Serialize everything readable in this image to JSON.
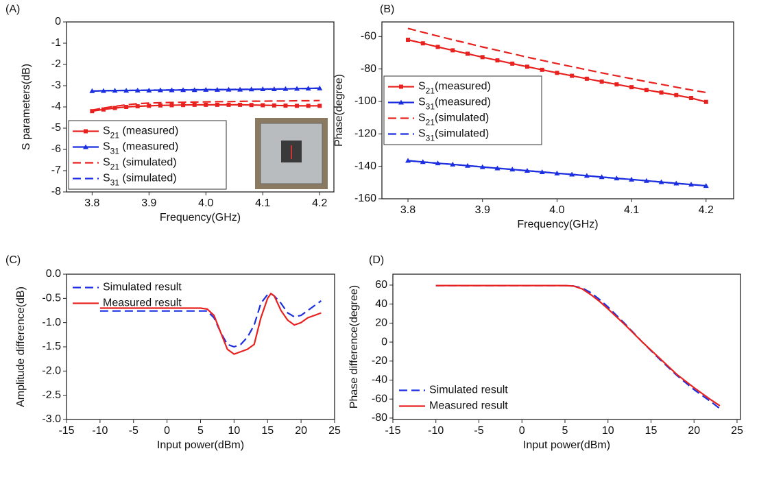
{
  "chart_data": [
    {
      "type": "line",
      "label": "(A)",
      "xlabel": "Frequency(GHz)",
      "ylabel": "S parameters(dB)",
      "x": [
        3.8,
        3.82,
        3.84,
        3.86,
        3.88,
        3.9,
        3.92,
        3.94,
        3.96,
        3.98,
        4.0,
        4.02,
        4.04,
        4.06,
        4.08,
        4.1,
        4.12,
        4.14,
        4.16,
        4.18,
        4.2
      ],
      "series": [
        {
          "name": "S21 (measured)",
          "color": "#e8201e",
          "marker": "square",
          "dashed": false,
          "values": [
            -4.2,
            -4.12,
            -4.05,
            -4.0,
            -3.97,
            -3.95,
            -3.93,
            -3.92,
            -3.91,
            -3.9,
            -3.9,
            -3.9,
            -3.9,
            -3.9,
            -3.91,
            -3.92,
            -3.93,
            -3.94,
            -3.95,
            -3.95,
            -3.95
          ]
        },
        {
          "name": "S31 (measured)",
          "color": "#1c2fe0",
          "marker": "triangle",
          "dashed": false,
          "values": [
            -3.25,
            -3.24,
            -3.23,
            -3.23,
            -3.22,
            -3.22,
            -3.21,
            -3.21,
            -3.2,
            -3.2,
            -3.19,
            -3.19,
            -3.18,
            -3.18,
            -3.17,
            -3.16,
            -3.16,
            -3.15,
            -3.14,
            -3.13,
            -3.12
          ]
        },
        {
          "name": "S21 (simulated)",
          "color": "#e8201e",
          "dashed": true,
          "values": [
            -4.15,
            -4.05,
            -3.97,
            -3.9,
            -3.85,
            -3.82,
            -3.8,
            -3.79,
            -3.78,
            -3.77,
            -3.76,
            -3.75,
            -3.75,
            -3.74,
            -3.73,
            -3.73,
            -3.72,
            -3.72,
            -3.71,
            -3.71,
            -3.7
          ]
        },
        {
          "name": "S31 (simulated)",
          "color": "#1c2fe0",
          "dashed": true,
          "values": [
            -3.25,
            -3.24,
            -3.23,
            -3.22,
            -3.22,
            -3.21,
            -3.21,
            -3.2,
            -3.2,
            -3.19,
            -3.19,
            -3.18,
            -3.18,
            -3.17,
            -3.17,
            -3.16,
            -3.15,
            -3.15,
            -3.14,
            -3.13,
            -3.12
          ]
        }
      ],
      "xlim": [
        3.755,
        4.225
      ],
      "ylim": [
        -8,
        0
      ],
      "xticks": [
        3.8,
        3.9,
        {
          "value": 4,
          "label": "4.0"
        },
        4.1,
        4.2
      ],
      "yticks": [
        0,
        -1,
        -2,
        -3,
        -4,
        -5,
        -6,
        -7,
        -8
      ],
      "legend": "lower left",
      "legend_frame": true
    },
    {
      "type": "line",
      "label": "(B)",
      "xlabel": "Frequency(GHz)",
      "ylabel": "Phase(degree)",
      "x": [
        3.8,
        3.82,
        3.84,
        3.86,
        3.88,
        3.9,
        3.92,
        3.94,
        3.96,
        3.98,
        4.0,
        4.02,
        4.04,
        4.06,
        4.08,
        4.1,
        4.12,
        4.14,
        4.16,
        4.18,
        4.2
      ],
      "series": [
        {
          "name": "S21(measured)",
          "color": "#e8201e",
          "marker": "square",
          "dashed": false,
          "values": [
            -62,
            -64.2,
            -66.4,
            -68.5,
            -70.6,
            -72.7,
            -74.7,
            -76.7,
            -78.6,
            -80.5,
            -82.4,
            -84.2,
            -86,
            -87.8,
            -89.5,
            -91.2,
            -92.9,
            -94.5,
            -96.1,
            -97.9,
            -100.3
          ]
        },
        {
          "name": "S31(measured)",
          "color": "#1c2fe0",
          "marker": "triangle",
          "dashed": false,
          "values": [
            -136.5,
            -137.3,
            -138.1,
            -138.8,
            -139.6,
            -140.4,
            -141.2,
            -141.9,
            -142.7,
            -143.5,
            -144.3,
            -145,
            -145.8,
            -146.6,
            -147.4,
            -148.1,
            -148.9,
            -149.7,
            -150.5,
            -151.2,
            -152
          ]
        },
        {
          "name": "S21(simulated)",
          "color": "#e8201e",
          "dashed": true,
          "values": [
            -55,
            -57.4,
            -59.7,
            -62,
            -64.2,
            -66.4,
            -68.5,
            -70.6,
            -72.7,
            -74.7,
            -76.7,
            -78.6,
            -80.5,
            -82.4,
            -84.2,
            -86,
            -87.8,
            -89.5,
            -91.2,
            -92.9,
            -94.5
          ]
        },
        {
          "name": "S31(simulated)",
          "color": "#1c2fe0",
          "dashed": true,
          "values": [
            -136.5,
            -137.3,
            -138.1,
            -138.8,
            -139.6,
            -140.4,
            -141.2,
            -141.9,
            -142.7,
            -143.5,
            -144.3,
            -145,
            -145.8,
            -146.6,
            -147.4,
            -148.1,
            -148.9,
            -149.7,
            -150.5,
            -151.2,
            -152
          ]
        }
      ],
      "xlim": [
        3.765,
        4.237
      ],
      "ylim": [
        -160,
        -51
      ],
      "xticks": [
        3.8,
        3.9,
        {
          "value": 4,
          "label": "4.0"
        },
        4.1,
        4.2
      ],
      "yticks": [
        -60,
        -80,
        -100,
        -120,
        -140,
        -160
      ],
      "legend": "center left",
      "legend_frame": true
    },
    {
      "type": "line",
      "label": "(C)",
      "xlabel": "Input power(dBm)",
      "ylabel": "Amplitude difference(dB)",
      "x": [
        -10,
        -5,
        0,
        5,
        6,
        7,
        8,
        9,
        10,
        11,
        12,
        13,
        14,
        15,
        15.5,
        16,
        17,
        18,
        19,
        20,
        21,
        22,
        23
      ],
      "series": [
        {
          "name": "Simulated result",
          "color": "#1c2fe0",
          "dashed": true,
          "values": [
            -0.76,
            -0.76,
            -0.76,
            -0.76,
            -0.76,
            -0.9,
            -1.2,
            -1.45,
            -1.5,
            -1.45,
            -1.3,
            -1.05,
            -0.6,
            -0.42,
            -0.4,
            -0.45,
            -0.6,
            -0.8,
            -0.88,
            -0.85,
            -0.75,
            -0.65,
            -0.55
          ]
        },
        {
          "name": "Measured result",
          "color": "#e8201e",
          "dashed": false,
          "values": [
            -0.7,
            -0.7,
            -0.7,
            -0.7,
            -0.72,
            -0.85,
            -1.2,
            -1.55,
            -1.65,
            -1.6,
            -1.55,
            -1.45,
            -0.9,
            -0.5,
            -0.4,
            -0.45,
            -0.75,
            -0.95,
            -1.05,
            -1.0,
            -0.9,
            -0.85,
            -0.8
          ]
        }
      ],
      "xlim": [
        -15,
        25
      ],
      "ylim": [
        -3,
        0
      ],
      "xticks": [
        -15,
        -10,
        -5,
        0,
        5,
        10,
        15,
        20,
        25
      ],
      "yticks": [
        {
          "value": 0,
          "label": "0.0"
        },
        -0.5,
        {
          "value": -1,
          "label": "-1.0"
        },
        -1.5,
        {
          "value": -2,
          "label": "-2.0"
        },
        -2.5,
        {
          "value": -3,
          "label": "-3.0"
        }
      ],
      "legend": "upper left",
      "legend_frame": false
    },
    {
      "type": "line",
      "label": "(D)",
      "xlabel": "Input power(dBm)",
      "ylabel": "Phase difference(degree)",
      "x": [
        -10,
        -5,
        0,
        5,
        6,
        7,
        8,
        9,
        10,
        12,
        14,
        16,
        18,
        20,
        22,
        23
      ],
      "series": [
        {
          "name": "Simulated result",
          "color": "#1c2fe0",
          "dashed": true,
          "values": [
            59.5,
            59.5,
            59.5,
            59.5,
            59,
            57,
            52,
            45,
            37,
            19,
            0,
            -18,
            -35,
            -50,
            -63,
            -70
          ]
        },
        {
          "name": "Measured result",
          "color": "#e8201e",
          "dashed": false,
          "values": [
            59.5,
            59.5,
            59.5,
            59.5,
            59,
            56,
            50,
            43,
            35,
            18,
            0,
            -17,
            -34,
            -48,
            -61,
            -67
          ]
        }
      ],
      "xlim": [
        -15,
        25.4
      ],
      "ylim": [
        -81.5,
        71.5
      ],
      "xticks": [
        -15,
        -10,
        -5,
        0,
        5,
        10,
        15,
        20,
        25
      ],
      "yticks": [
        60,
        40,
        20,
        0,
        -20,
        -40,
        -60,
        -80
      ],
      "legend": "lower left",
      "legend_frame": false
    }
  ]
}
